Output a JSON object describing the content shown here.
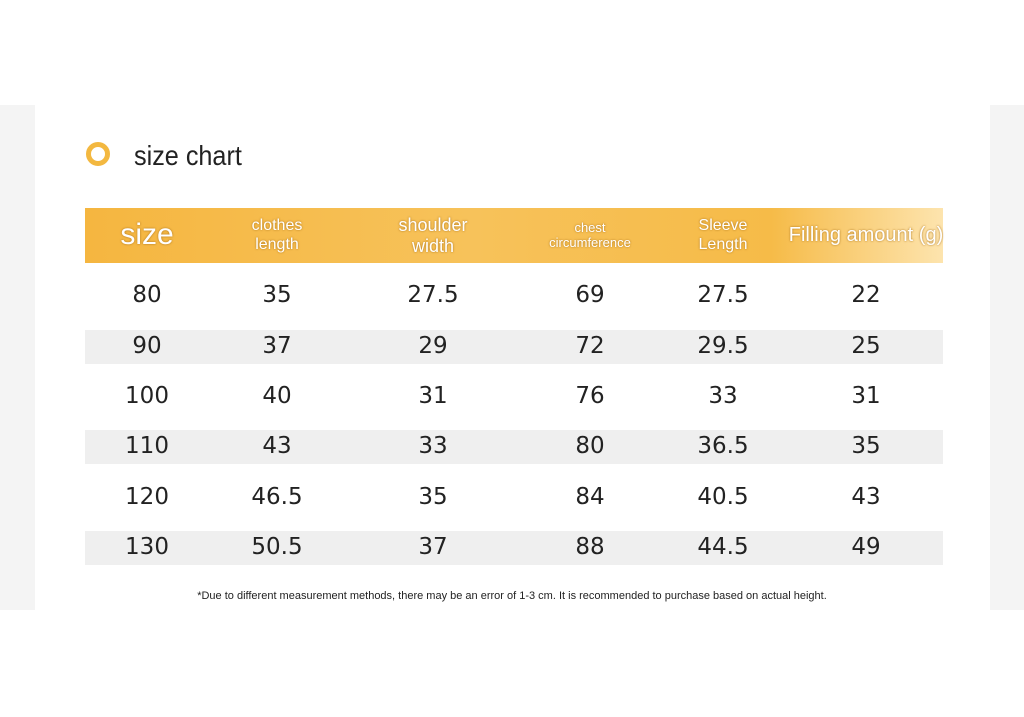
{
  "header": {
    "title": "size chart"
  },
  "table": {
    "columns": [
      [
        "size"
      ],
      [
        "clothes",
        "length"
      ],
      [
        "shoulder",
        "width"
      ],
      [
        "chest",
        "circumference"
      ],
      [
        "Sleeve",
        "Length"
      ],
      [
        "Filling amount (g)"
      ]
    ],
    "rows": [
      [
        80,
        35,
        27.5,
        69,
        27.5,
        22
      ],
      [
        90,
        37,
        29,
        72,
        29.5,
        25
      ],
      [
        100,
        40,
        31,
        76,
        33,
        31
      ],
      [
        110,
        43,
        33,
        80,
        36.5,
        35
      ],
      [
        120,
        46.5,
        35,
        84,
        40.5,
        43
      ],
      [
        130,
        50.5,
        37,
        88,
        44.5,
        49
      ]
    ]
  },
  "footnote": "*Due to different measurement methods, there may be an error of 1-3 cm. It is recommended to purchase based on actual height."
}
